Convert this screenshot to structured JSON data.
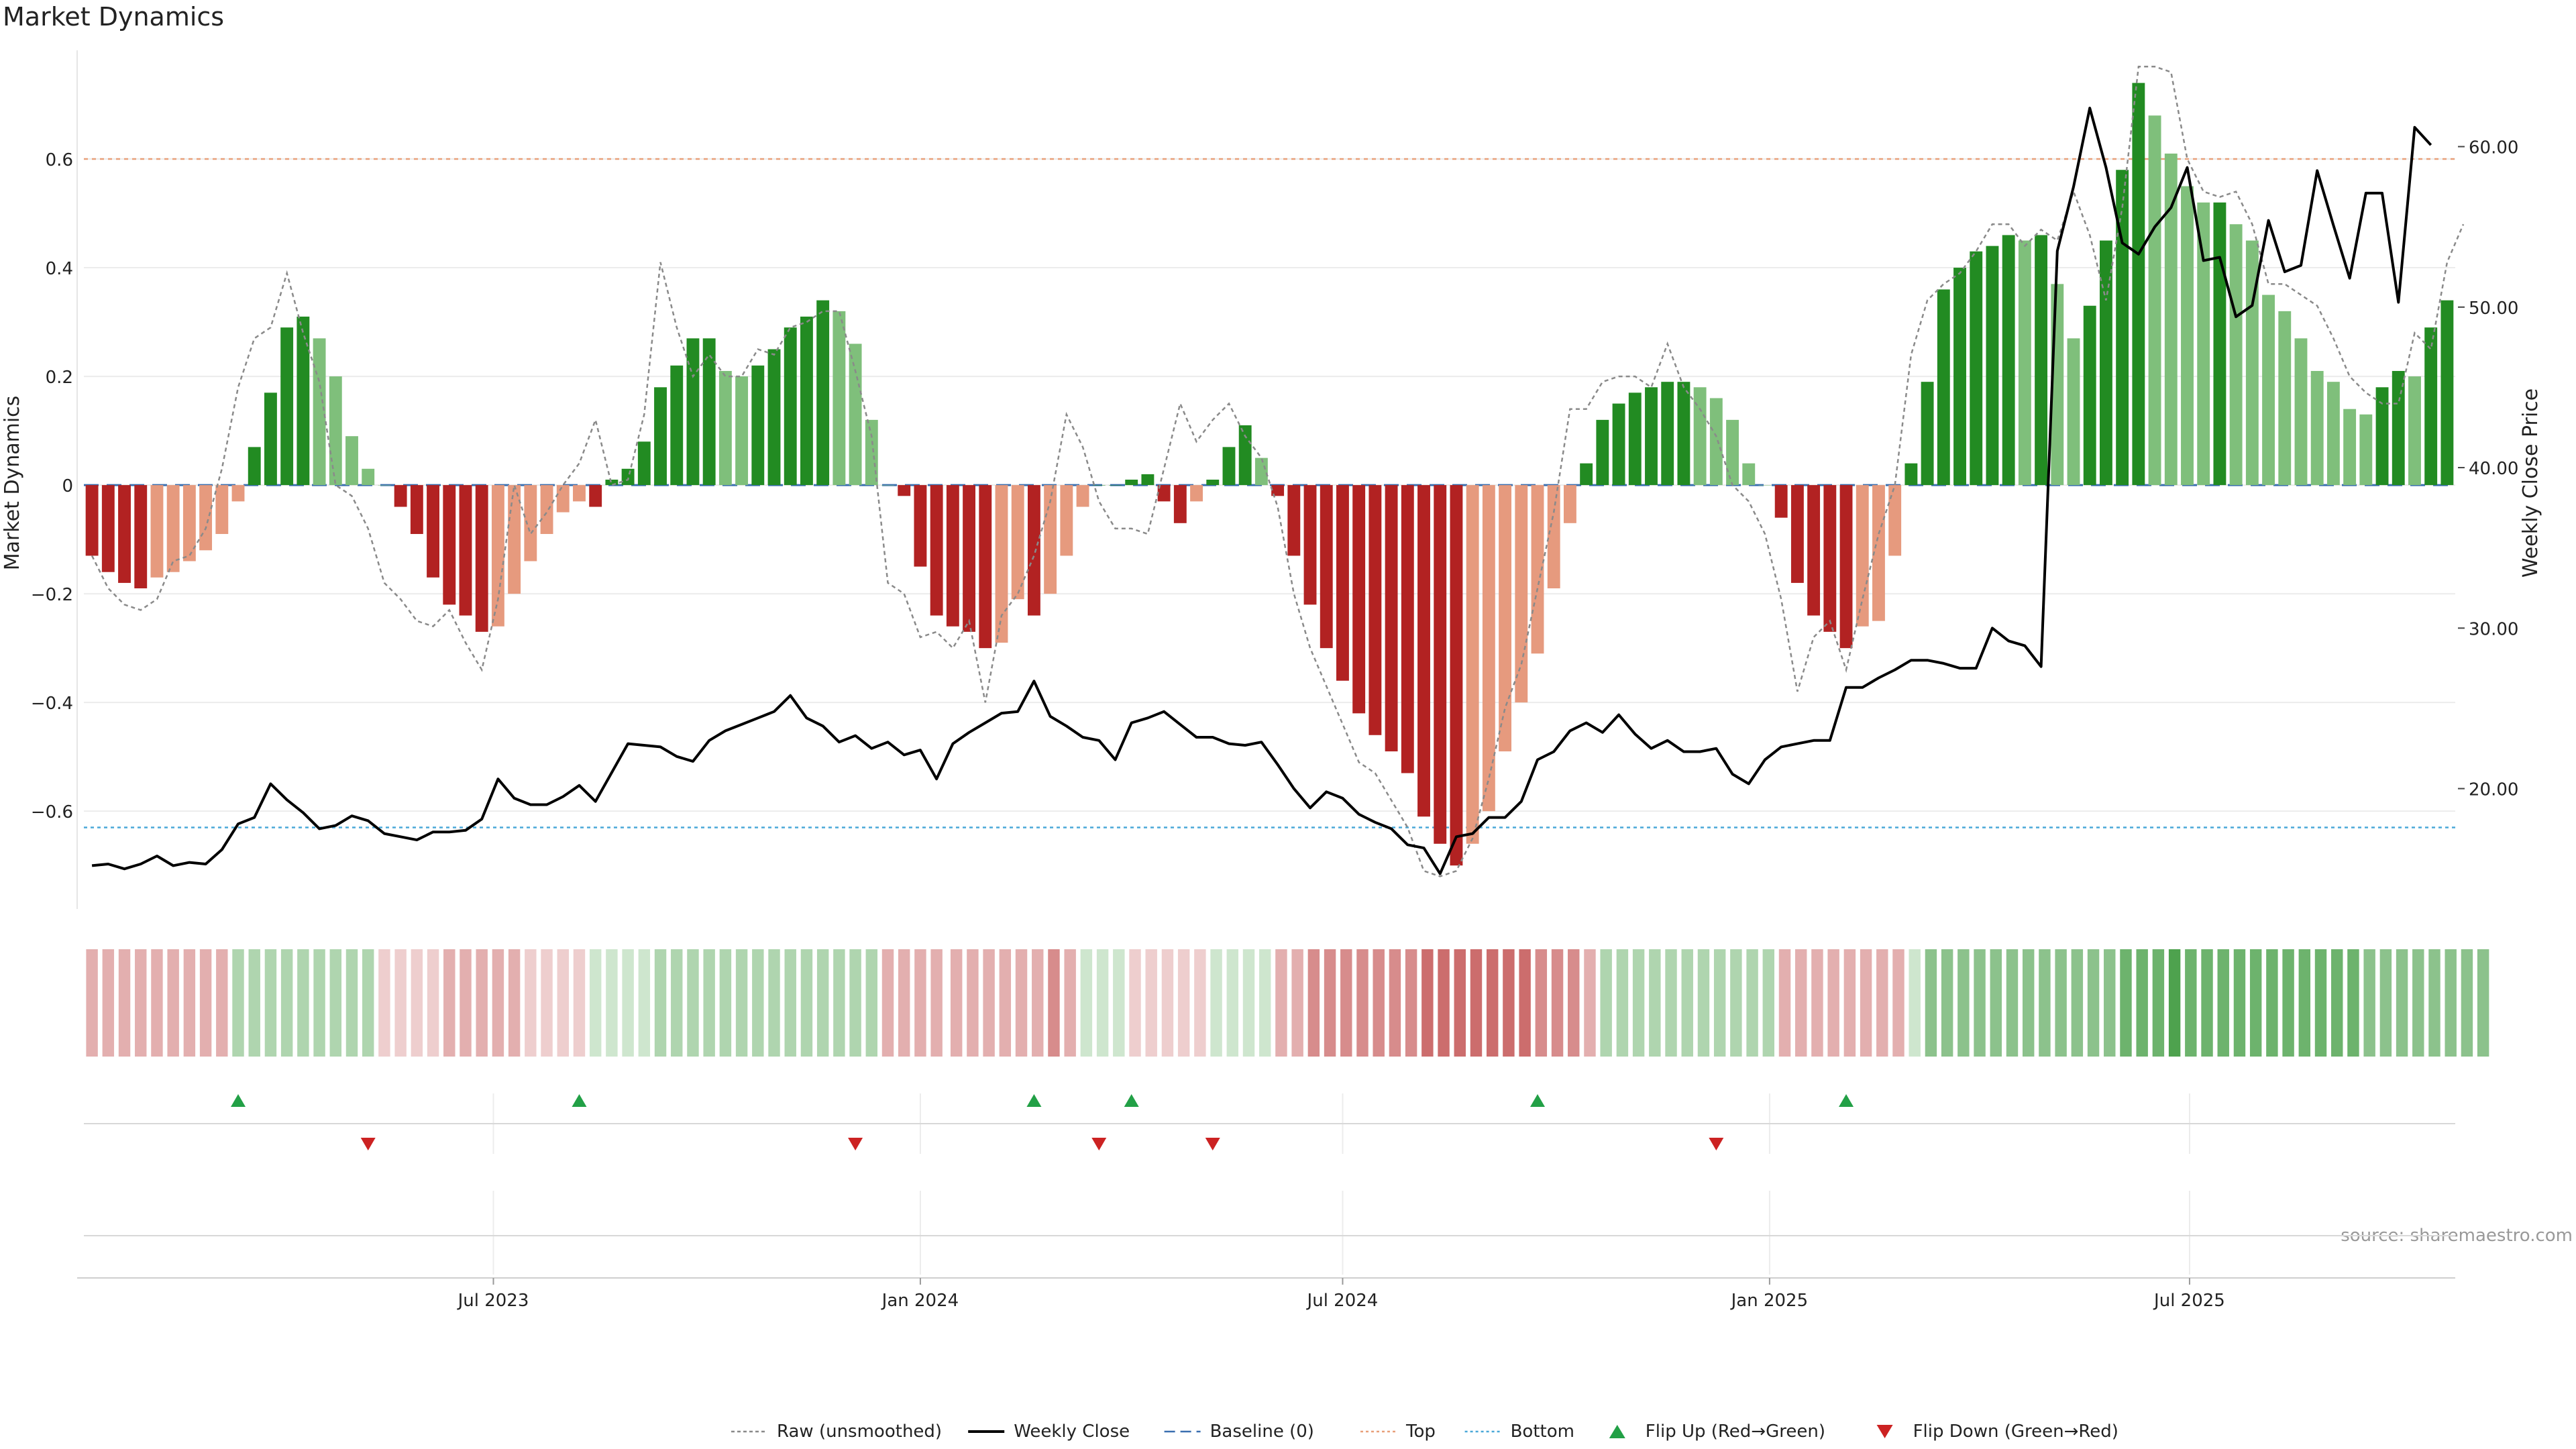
{
  "chart_data": {
    "type": "bar",
    "title": "Market Dynamics",
    "ylabel_left": "Market Dynamics",
    "ylabel_right": "Weekly Close Price",
    "source": "source: sharemaestro.com",
    "start_date": "2023-01-09",
    "left_ylim": [
      -0.78,
      0.8
    ],
    "right_ylim": [
      12.5,
      66.0
    ],
    "left_ticks": [
      {
        "v": -0.6,
        "label": "−0.6"
      },
      {
        "v": -0.4,
        "label": "−0.4"
      },
      {
        "v": -0.2,
        "label": "−0.2"
      },
      {
        "v": 0,
        "label": "0"
      },
      {
        "v": 0.2,
        "label": "0.2"
      },
      {
        "v": 0.4,
        "label": "0.4"
      },
      {
        "v": 0.6,
        "label": "0.6"
      }
    ],
    "right_ticks": [
      {
        "v": 20,
        "label": "20.00"
      },
      {
        "v": 30,
        "label": "30.00"
      },
      {
        "v": 40,
        "label": "40.00"
      },
      {
        "v": 50,
        "label": "50.00"
      },
      {
        "v": 60,
        "label": "60.00"
      }
    ],
    "x_ticks": [
      {
        "date": "2023-07-01",
        "label": "Jul 2023"
      },
      {
        "date": "2024-01-01",
        "label": "Jan 2024"
      },
      {
        "date": "2024-07-01",
        "label": "Jul 2024"
      },
      {
        "date": "2025-01-01",
        "label": "Jan 2025"
      },
      {
        "date": "2025-07-01",
        "label": "Jul 2025"
      }
    ],
    "top_level": 0.6,
    "bottom_level": -0.63,
    "baseline": 0,
    "bars": [
      -0.13,
      -0.16,
      -0.18,
      -0.19,
      -0.17,
      -0.16,
      -0.14,
      -0.12,
      -0.09,
      -0.03,
      0.07,
      0.17,
      0.29,
      0.31,
      0.27,
      0.2,
      0.09,
      0.03,
      0.0,
      -0.04,
      -0.09,
      -0.17,
      -0.22,
      -0.24,
      -0.27,
      -0.26,
      -0.2,
      -0.14,
      -0.09,
      -0.05,
      -0.03,
      -0.04,
      0.01,
      0.03,
      0.08,
      0.18,
      0.22,
      0.27,
      0.27,
      0.21,
      0.2,
      0.22,
      0.25,
      0.29,
      0.31,
      0.34,
      0.32,
      0.26,
      0.12,
      0.0,
      -0.02,
      -0.15,
      -0.24,
      -0.26,
      -0.27,
      -0.3,
      -0.29,
      -0.21,
      -0.24,
      -0.2,
      -0.13,
      -0.04,
      0.0,
      0.0,
      0.01,
      0.02,
      -0.03,
      -0.07,
      -0.03,
      0.01,
      0.07,
      0.11,
      0.05,
      -0.02,
      -0.13,
      -0.22,
      -0.3,
      -0.36,
      -0.42,
      -0.46,
      -0.49,
      -0.53,
      -0.61,
      -0.66,
      -0.7,
      -0.66,
      -0.6,
      -0.49,
      -0.4,
      -0.31,
      -0.19,
      -0.07,
      0.04,
      0.12,
      0.15,
      0.17,
      0.18,
      0.19,
      0.19,
      0.18,
      0.16,
      0.12,
      0.04,
      0.0,
      -0.06,
      -0.18,
      -0.24,
      -0.27,
      -0.3,
      -0.26,
      -0.25,
      -0.13,
      0.04,
      0.19,
      0.36,
      0.4,
      0.43,
      0.44,
      0.46,
      0.45,
      0.46,
      0.37,
      0.27,
      0.33,
      0.45,
      0.58,
      0.74,
      0.68,
      0.61,
      0.55,
      0.52,
      0.52,
      0.48,
      0.45,
      0.35,
      0.32,
      0.27,
      0.21,
      0.19,
      0.14,
      0.13,
      0.18,
      0.21,
      0.2,
      0.29,
      0.34
    ],
    "raw": [
      -0.13,
      -0.19,
      -0.22,
      -0.23,
      -0.21,
      -0.14,
      -0.13,
      -0.08,
      0.03,
      0.18,
      0.27,
      0.29,
      0.39,
      0.28,
      0.19,
      0.0,
      -0.02,
      -0.08,
      -0.18,
      -0.21,
      -0.25,
      -0.26,
      -0.23,
      -0.29,
      -0.34,
      -0.21,
      -0.0,
      -0.09,
      -0.05,
      0.0,
      0.04,
      0.12,
      0.0,
      0.01,
      0.13,
      0.41,
      0.29,
      0.2,
      0.24,
      0.2,
      0.2,
      0.25,
      0.24,
      0.29,
      0.3,
      0.32,
      0.32,
      0.21,
      0.09,
      -0.18,
      -0.2,
      -0.28,
      -0.27,
      -0.3,
      -0.25,
      -0.4,
      -0.24,
      -0.2,
      -0.13,
      -0.03,
      0.13,
      0.07,
      -0.03,
      -0.08,
      -0.08,
      -0.09,
      0.03,
      0.15,
      0.08,
      0.12,
      0.15,
      0.09,
      0.05,
      -0.04,
      -0.2,
      -0.3,
      -0.37,
      -0.44,
      -0.51,
      -0.53,
      -0.58,
      -0.63,
      -0.71,
      -0.72,
      -0.71,
      -0.65,
      -0.54,
      -0.41,
      -0.33,
      -0.19,
      -0.05,
      0.14,
      0.14,
      0.19,
      0.2,
      0.2,
      0.18,
      0.26,
      0.18,
      0.14,
      0.09,
      0.0,
      -0.03,
      -0.09,
      -0.21,
      -0.38,
      -0.28,
      -0.25,
      -0.34,
      -0.21,
      -0.09,
      0.0,
      0.24,
      0.34,
      0.37,
      0.39,
      0.43,
      0.48,
      0.48,
      0.44,
      0.47,
      0.45,
      0.54,
      0.46,
      0.34,
      0.51,
      0.77,
      0.77,
      0.76,
      0.6,
      0.54,
      0.53,
      0.54,
      0.48,
      0.37,
      0.37,
      0.35,
      0.33,
      0.27,
      0.2,
      0.17,
      0.15,
      0.15,
      0.28,
      0.25,
      0.41,
      0.48
    ],
    "close": [
      15.2,
      15.3,
      15.0,
      15.3,
      15.8,
      15.2,
      15.4,
      15.3,
      16.2,
      17.8,
      18.2,
      20.3,
      19.3,
      18.5,
      17.5,
      17.7,
      18.3,
      18.0,
      17.2,
      17.0,
      16.8,
      17.3,
      17.3,
      17.4,
      18.1,
      20.6,
      19.4,
      19.0,
      19.0,
      19.5,
      20.2,
      19.2,
      21.0,
      22.8,
      22.7,
      22.6,
      22.0,
      21.7,
      23.0,
      23.6,
      24.0,
      24.4,
      24.8,
      25.8,
      24.4,
      23.9,
      22.9,
      23.3,
      22.5,
      22.9,
      22.1,
      22.4,
      20.6,
      22.8,
      23.5,
      24.1,
      24.7,
      24.8,
      26.7,
      24.5,
      23.9,
      23.2,
      23.0,
      21.8,
      24.1,
      24.4,
      24.8,
      24.0,
      23.2,
      23.2,
      22.8,
      22.7,
      22.9,
      21.5,
      20.0,
      18.8,
      19.8,
      19.4,
      18.4,
      17.9,
      17.5,
      16.5,
      16.3,
      14.7,
      17.0,
      17.2,
      18.2,
      18.2,
      19.2,
      21.8,
      22.3,
      23.6,
      24.1,
      23.5,
      24.6,
      23.4,
      22.5,
      23.0,
      22.3,
      22.3,
      22.5,
      20.9,
      20.3,
      21.8,
      22.6,
      22.8,
      23.0,
      23.0,
      26.3,
      26.3,
      26.9,
      27.4,
      28.0,
      28.0,
      27.8,
      27.5,
      27.5,
      30.0,
      29.2,
      28.9,
      27.6,
      53.5,
      57.5,
      62.4,
      58.7,
      54.0,
      53.3,
      55.0,
      56.2,
      58.7,
      52.9,
      53.1,
      49.4,
      50.1,
      55.4,
      52.2,
      52.6,
      58.5,
      55.1,
      51.8,
      57.1,
      57.1,
      50.3,
      61.2,
      60.1
    ],
    "strip_levels": [
      -2,
      -2,
      -2,
      -2,
      -2,
      -2,
      -2,
      -2,
      -2,
      2,
      2,
      2,
      2,
      2,
      2,
      2,
      2,
      2,
      -1,
      -1,
      -1,
      -1,
      -2,
      -2,
      -2,
      -2,
      -2,
      -1,
      -1,
      -1,
      -1,
      1,
      1,
      1,
      1,
      2,
      2,
      2,
      2,
      2,
      2,
      2,
      2,
      2,
      2,
      2,
      2,
      2,
      2,
      -2,
      -2,
      -2,
      -2,
      -2,
      -2,
      -2,
      -2,
      -2,
      -2,
      -3,
      -2,
      1,
      1,
      1,
      -1,
      -1,
      -1,
      -1,
      -1,
      1,
      1,
      1,
      1,
      -2,
      -2,
      -3,
      -3,
      -3,
      -3,
      -3,
      -3,
      -3,
      -4,
      -4,
      -4,
      -4,
      -4,
      -4,
      -4,
      -3,
      -3,
      -3,
      -2,
      2,
      2,
      2,
      2,
      2,
      2,
      2,
      2,
      2,
      2,
      2,
      -2,
      -2,
      -2,
      -2,
      -2,
      -2,
      -2,
      -2,
      1,
      3,
      3,
      3,
      3,
      3,
      3,
      3,
      3,
      3,
      3,
      3,
      3,
      4,
      4,
      4,
      5,
      4,
      4,
      4,
      4,
      4,
      4,
      4,
      4,
      4,
      4,
      4,
      3,
      3,
      3,
      3,
      3,
      3,
      3,
      3
    ],
    "strip_gap_after": 52,
    "flips_up": [
      9,
      30,
      58,
      64,
      89,
      108
    ],
    "flips_down": [
      17,
      47,
      62,
      69,
      100
    ],
    "legend": [
      {
        "key": "raw",
        "label": "Raw (unsmoothed)",
        "color": "#8a8a8a"
      },
      {
        "key": "close",
        "label": "Weekly Close",
        "color": "#000000"
      },
      {
        "key": "baseline",
        "label": "Baseline (0)",
        "color": "#3a6fb0"
      },
      {
        "key": "top",
        "label": "Top",
        "color": "#e8a07a"
      },
      {
        "key": "bottom",
        "label": "Bottom",
        "color": "#4aa8d8"
      },
      {
        "key": "flip_up",
        "label": "Flip Up (Red→Green)",
        "color": "#22a046"
      },
      {
        "key": "flip_down",
        "label": "Flip Down (Green→Red)",
        "color": "#cc2222"
      }
    ],
    "colors": {
      "green_strong": "#228b22",
      "green_light": "#7fbf7b",
      "red_strong": "#b22222",
      "red_light": "#e69a7e"
    }
  }
}
